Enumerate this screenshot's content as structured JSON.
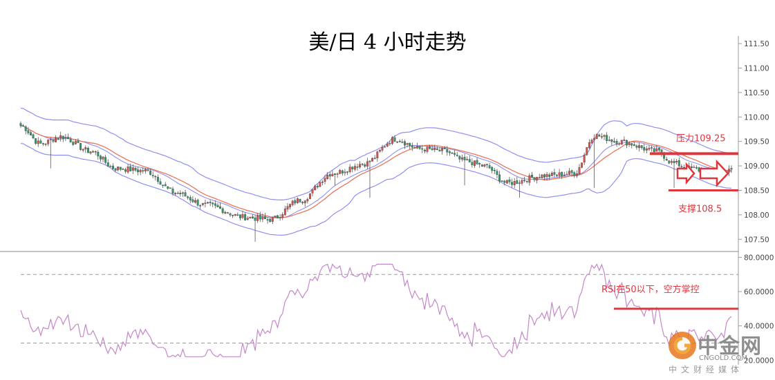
{
  "title": "美/日 4 小时走势",
  "chart_data": [
    {
      "type": "candlestick",
      "name": "USD/JPY 4H",
      "ylim": [
        107.25,
        111.6
      ],
      "yticks": [
        107.5,
        108.0,
        108.5,
        109.0,
        109.5,
        110.0,
        110.5,
        111.0,
        111.5
      ],
      "ytick_labels": [
        "107.50",
        "108.00",
        "108.50",
        "109.00",
        "109.50",
        "110.00",
        "110.50",
        "111.00",
        "111.50"
      ],
      "close_anchors": [
        [
          0,
          109.82
        ],
        [
          8,
          109.45
        ],
        [
          16,
          109.6
        ],
        [
          28,
          109.3
        ],
        [
          38,
          108.95
        ],
        [
          50,
          108.9
        ],
        [
          62,
          108.45
        ],
        [
          74,
          108.2
        ],
        [
          90,
          107.95
        ],
        [
          100,
          107.9
        ],
        [
          112,
          108.3
        ],
        [
          125,
          108.85
        ],
        [
          138,
          109.05
        ],
        [
          150,
          109.55
        ],
        [
          160,
          109.35
        ],
        [
          170,
          109.3
        ],
        [
          178,
          109.1
        ],
        [
          186,
          109.0
        ],
        [
          195,
          108.65
        ],
        [
          210,
          108.8
        ],
        [
          222,
          108.85
        ],
        [
          230,
          109.62
        ],
        [
          240,
          109.5
        ],
        [
          255,
          109.3
        ],
        [
          262,
          109.05
        ],
        [
          268,
          108.95
        ],
        [
          278,
          108.85
        ],
        [
          285,
          108.9
        ]
      ],
      "series_colors": {
        "up": "#d9534f",
        "down": "#2e9b6a"
      },
      "annotations": [
        {
          "type": "resistance",
          "label": "压力109.25",
          "value": 109.25,
          "color": "#e0353b"
        },
        {
          "type": "support",
          "label": "支撑108.5",
          "value": 108.5,
          "color": "#e0353b"
        }
      ],
      "indicators": [
        "Bollinger Bands",
        "Moving Average"
      ],
      "indicator_colors": {
        "bands": "#8f8ff0",
        "mid": "#e8765a"
      }
    },
    {
      "type": "line",
      "name": "RSI",
      "ylim": [
        18.5,
        83
      ],
      "yticks": [
        20,
        40,
        60,
        80
      ],
      "ytick_labels": [
        "20.0000",
        "40.0000",
        "60.0000",
        "80.0000"
      ],
      "reference_lines": [
        70,
        30
      ],
      "series_color": "#c587c9",
      "annotations": [
        {
          "label": "RSI在50以下，空方掌控",
          "value": 50,
          "color": "#e0353b"
        }
      ]
    }
  ],
  "watermark": {
    "name": "中金网",
    "sub": "CNGOLD.COM",
    "cn": "中文财经媒体"
  }
}
